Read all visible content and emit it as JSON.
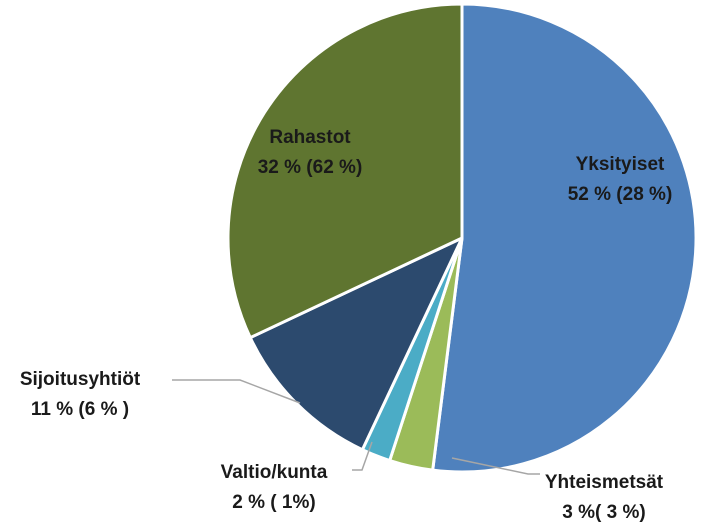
{
  "chart_data": {
    "type": "pie",
    "title": "",
    "start_angle_deg": 0,
    "direction": "clockwise",
    "slices": [
      {
        "name": "Yksityiset",
        "value": 52,
        "label_line1": "Yksityiset",
        "label_line2": "52 % (28 %)",
        "color": "#4f81bd",
        "label_color": "#1a1a1a"
      },
      {
        "name": "Yhteismetsät",
        "value": 3,
        "label_line1": "Yhteismetsät",
        "label_line2": "3 %( 3 %)",
        "color": "#9bbb59",
        "label_color": "#1a1a1a"
      },
      {
        "name": "Valtio/kunta",
        "value": 2,
        "label_line1": "Valtio/kunta",
        "label_line2": "2 % ( 1%)",
        "color": "#4bacc6",
        "label_color": "#1a1a1a"
      },
      {
        "name": "Sijoitusyhtiöt",
        "value": 11,
        "label_line1": "Sijoitusyhtiöt",
        "label_line2": "11 % (6 % )",
        "color": "#2c4a6e",
        "label_color": "#1a1a1a"
      },
      {
        "name": "Rahastot",
        "value": 32,
        "label_line1": "Rahastot",
        "label_line2": "32 % (62 %)",
        "color": "#5f7530",
        "label_color": "#1a1a1a"
      }
    ]
  }
}
